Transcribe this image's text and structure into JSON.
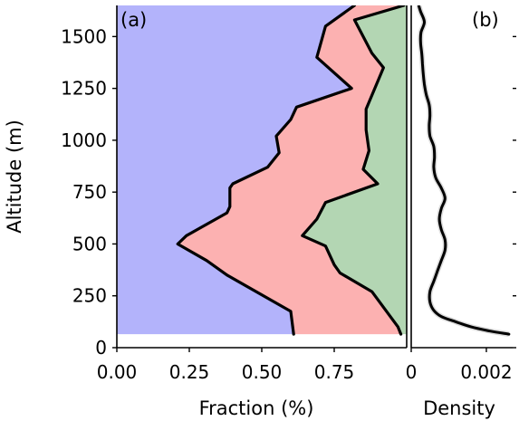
{
  "chart_data": [
    {
      "panel": "(a)",
      "type": "area",
      "stacked": true,
      "xlabel": "Fraction (%)",
      "ylabel": "Altitude (m)",
      "xlim": [
        0.0,
        1.0
      ],
      "ylim": [
        0,
        1650
      ],
      "xticks": [
        "0.00",
        "0.25",
        "0.50",
        "0.75"
      ],
      "xtick_values": [
        0.0,
        0.25,
        0.5,
        0.75
      ],
      "yticks": [
        "0",
        "250",
        "500",
        "750",
        "1000",
        "1250",
        "1500"
      ],
      "ytick_values": [
        0,
        250,
        500,
        750,
        1000,
        1250,
        1500
      ],
      "series_colors": [
        "#b3b3fb",
        "#fcb1b1",
        "#b3d6b3"
      ],
      "boundary_1": {
        "altitude": [
          65,
          175,
          350,
          420,
          500,
          540,
          650,
          680,
          770,
          790,
          870,
          940,
          1020,
          1100,
          1160,
          1250,
          1400,
          1550,
          1650
        ],
        "fraction": [
          0.61,
          0.6,
          0.38,
          0.31,
          0.21,
          0.24,
          0.38,
          0.39,
          0.39,
          0.4,
          0.52,
          0.56,
          0.55,
          0.6,
          0.62,
          0.81,
          0.69,
          0.72,
          0.82
        ]
      },
      "boundary_2": {
        "altitude": [
          65,
          100,
          270,
          360,
          400,
          490,
          540,
          620,
          700,
          790,
          860,
          950,
          1050,
          1150,
          1250,
          1350,
          1420,
          1500,
          1580,
          1650
        ],
        "fraction": [
          0.98,
          0.97,
          0.88,
          0.77,
          0.75,
          0.72,
          0.64,
          0.69,
          0.72,
          0.9,
          0.85,
          0.87,
          0.86,
          0.86,
          0.89,
          0.92,
          0.88,
          0.85,
          0.82,
          0.99
        ]
      }
    },
    {
      "panel": "(b)",
      "type": "line",
      "xlabel": "Density",
      "xlim": [
        0,
        0.0027
      ],
      "ylim": [
        0,
        1650
      ],
      "xticks": [
        "0",
        "0.002"
      ],
      "xtick_values": [
        0,
        0.002
      ],
      "series": {
        "altitude": [
          65,
          80,
          100,
          130,
          150,
          180,
          220,
          270,
          320,
          370,
          420,
          470,
          520,
          570,
          620,
          670,
          720,
          770,
          820,
          870,
          920,
          970,
          1020,
          1070,
          1120,
          1170,
          1220,
          1270,
          1320,
          1370,
          1420,
          1470,
          1520,
          1570,
          1620,
          1650
        ],
        "density": [
          0.0026,
          0.0021,
          0.0016,
          0.0011,
          0.0008,
          0.0006,
          0.0005,
          0.0005,
          0.0006,
          0.0007,
          0.0008,
          0.0009,
          0.0009,
          0.0008,
          0.00075,
          0.0008,
          0.0009,
          0.0008,
          0.00065,
          0.0006,
          0.00062,
          0.0006,
          0.0005,
          0.00048,
          0.0005,
          0.00048,
          0.0004,
          0.00035,
          0.00032,
          0.0003,
          0.00028,
          0.00025,
          0.00026,
          0.00035,
          0.00025,
          0.0002
        ]
      }
    }
  ]
}
